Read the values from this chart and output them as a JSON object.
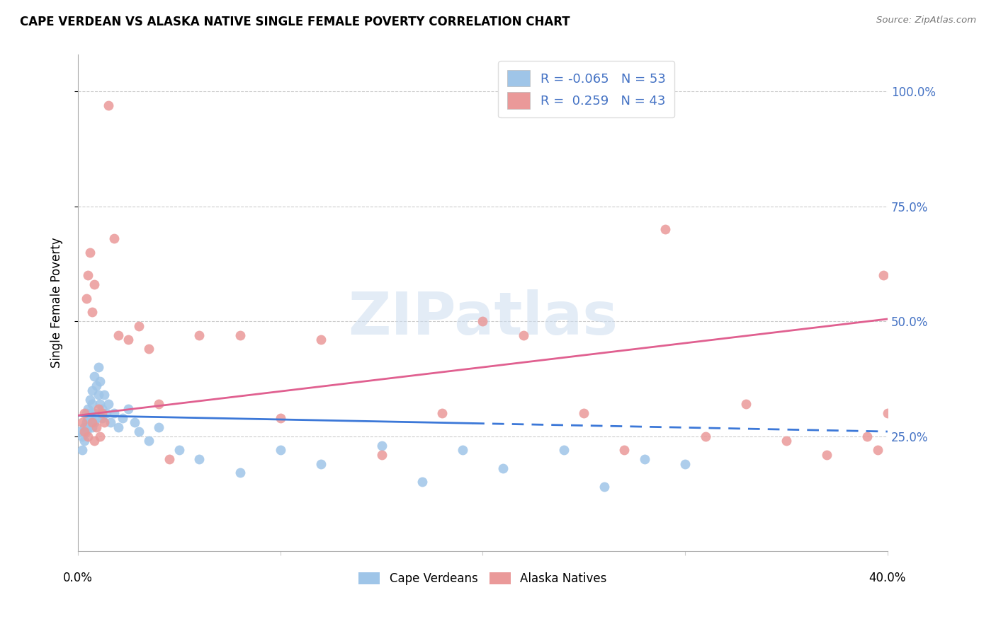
{
  "title": "CAPE VERDEAN VS ALASKA NATIVE SINGLE FEMALE POVERTY CORRELATION CHART",
  "source": "Source: ZipAtlas.com",
  "ylabel": "Single Female Poverty",
  "ytick_values": [
    0.25,
    0.5,
    0.75,
    1.0
  ],
  "ytick_labels": [
    "25.0%",
    "50.0%",
    "75.0%",
    "100.0%"
  ],
  "cape_verdean_color": "#9fc5e8",
  "alaska_native_color": "#ea9999",
  "cape_verdean_line_color": "#3c78d8",
  "alaska_native_line_color": "#e06090",
  "background_color": "#ffffff",
  "watermark_text": "ZIPatlas",
  "cv_x": [
    0.001,
    0.002,
    0.002,
    0.003,
    0.003,
    0.004,
    0.004,
    0.004,
    0.005,
    0.005,
    0.005,
    0.006,
    0.006,
    0.006,
    0.007,
    0.007,
    0.007,
    0.008,
    0.008,
    0.008,
    0.009,
    0.009,
    0.01,
    0.01,
    0.011,
    0.011,
    0.012,
    0.012,
    0.013,
    0.014,
    0.015,
    0.016,
    0.018,
    0.02,
    0.022,
    0.025,
    0.028,
    0.03,
    0.035,
    0.04,
    0.05,
    0.06,
    0.08,
    0.1,
    0.12,
    0.15,
    0.17,
    0.19,
    0.21,
    0.24,
    0.26,
    0.28,
    0.3
  ],
  "cv_y": [
    0.26,
    0.22,
    0.25,
    0.27,
    0.24,
    0.28,
    0.3,
    0.26,
    0.29,
    0.31,
    0.27,
    0.33,
    0.28,
    0.3,
    0.35,
    0.32,
    0.27,
    0.38,
    0.3,
    0.28,
    0.36,
    0.29,
    0.4,
    0.34,
    0.32,
    0.37,
    0.31,
    0.29,
    0.34,
    0.3,
    0.32,
    0.28,
    0.3,
    0.27,
    0.29,
    0.31,
    0.28,
    0.26,
    0.24,
    0.27,
    0.22,
    0.2,
    0.17,
    0.22,
    0.19,
    0.23,
    0.15,
    0.22,
    0.18,
    0.22,
    0.14,
    0.2,
    0.19
  ],
  "an_x": [
    0.002,
    0.003,
    0.003,
    0.004,
    0.005,
    0.005,
    0.006,
    0.007,
    0.007,
    0.008,
    0.008,
    0.009,
    0.01,
    0.011,
    0.012,
    0.013,
    0.015,
    0.018,
    0.02,
    0.025,
    0.03,
    0.035,
    0.04,
    0.045,
    0.06,
    0.08,
    0.1,
    0.12,
    0.15,
    0.18,
    0.2,
    0.22,
    0.25,
    0.27,
    0.29,
    0.31,
    0.33,
    0.35,
    0.37,
    0.39,
    0.395,
    0.398,
    0.4
  ],
  "an_y": [
    0.28,
    0.3,
    0.26,
    0.55,
    0.6,
    0.25,
    0.65,
    0.52,
    0.28,
    0.58,
    0.24,
    0.27,
    0.31,
    0.25,
    0.3,
    0.28,
    0.97,
    0.68,
    0.47,
    0.46,
    0.49,
    0.44,
    0.32,
    0.2,
    0.47,
    0.47,
    0.29,
    0.46,
    0.21,
    0.3,
    0.5,
    0.47,
    0.3,
    0.22,
    0.7,
    0.25,
    0.32,
    0.24,
    0.21,
    0.25,
    0.22,
    0.6,
    0.3
  ],
  "xlim": [
    0.0,
    0.4
  ],
  "ylim": [
    0.0,
    1.08
  ],
  "cv_trend_x0": 0.0,
  "cv_trend_y0": 0.295,
  "cv_trend_x1": 0.4,
  "cv_trend_y1": 0.26,
  "an_trend_x0": 0.0,
  "an_trend_y0": 0.295,
  "an_trend_x1": 0.4,
  "an_trend_y1": 0.505,
  "xline_break": 0.195,
  "legend_text1": "R = -0.065   N = 53",
  "legend_text2": "R =  0.259   N = 43",
  "label_cv": "Cape Verdeans",
  "label_an": "Alaska Natives",
  "legend_color": "#4472c4",
  "grid_color": "#cccccc",
  "spine_color": "#aaaaaa"
}
